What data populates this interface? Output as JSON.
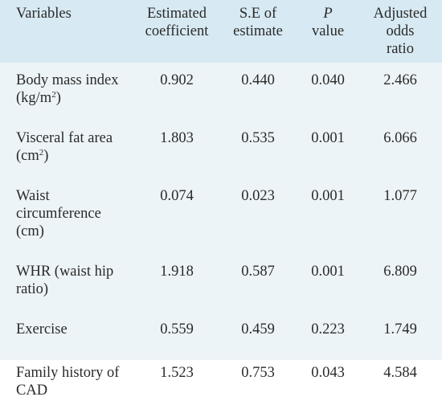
{
  "table": {
    "headers": {
      "variables": [
        "Variables"
      ],
      "coefficient": [
        "Estimated",
        "coefficient"
      ],
      "se": [
        "S.E of",
        "estimate"
      ],
      "pvalue_italic": "P",
      "pvalue_rest": "value",
      "odds": [
        "Adjusted",
        "odds",
        "ratio"
      ]
    },
    "rows": [
      {
        "variable_lines": [
          "Body mass index",
          "(kg/m"
        ],
        "sup": "2",
        "suffix": ")",
        "coef": "0.902",
        "se": "0.440",
        "p": "0.040",
        "or": "2.466"
      },
      {
        "variable_lines": [
          "Visceral fat area",
          "(cm"
        ],
        "sup": "2",
        "suffix": ")",
        "coef": "1.803",
        "se": "0.535",
        "p": "0.001",
        "or": "6.066"
      },
      {
        "variable_lines": [
          "Waist",
          "circumference",
          "(cm)"
        ],
        "coef": "0.074",
        "se": "0.023",
        "p": "0.001",
        "or": "1.077"
      },
      {
        "variable_lines": [
          "WHR (waist hip",
          "ratio)"
        ],
        "coef": "1.918",
        "se": "0.587",
        "p": "0.001",
        "or": "6.809"
      },
      {
        "variable_lines": [
          "Exercise"
        ],
        "coef": "0.559",
        "se": "0.459",
        "p": "0.223",
        "or": "1.749"
      },
      {
        "variable_lines": [
          "Family history of",
          "CAD"
        ],
        "coef": "1.523",
        "se": "0.753",
        "p": "0.043",
        "or": "4.584"
      }
    ]
  },
  "colors": {
    "header_bg": "#d7e9f2",
    "body_bg": "#edf4f7",
    "text": "#2a2a2a"
  }
}
